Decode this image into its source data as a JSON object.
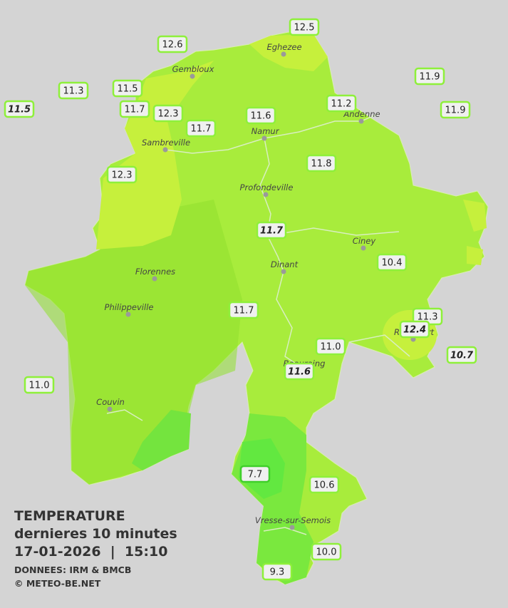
{
  "cities": [
    "Eghezee",
    "Gembloux",
    "Andenne",
    "Namur",
    "Sambreville",
    "Profondeville",
    "Ciney",
    "Dinant",
    "Florennes",
    "Philippeville",
    "Rochefort",
    "Beauraing",
    "Couvin",
    "Vresse-sur-Semois"
  ],
  "stations": [
    {
      "label": "12.5"
    },
    {
      "label": "12.6"
    },
    {
      "label": "11.9"
    },
    {
      "label": "11.3"
    },
    {
      "label": "11.5"
    },
    {
      "label": "11.5",
      "italic": true
    },
    {
      "label": "11.7"
    },
    {
      "label": "12.3"
    },
    {
      "label": "11.6"
    },
    {
      "label": "11.2"
    },
    {
      "label": "11.9"
    },
    {
      "label": "11.7"
    },
    {
      "label": "12.3"
    },
    {
      "label": "11.8"
    },
    {
      "label": "11.7",
      "italic": true
    },
    {
      "label": "10.4"
    },
    {
      "label": "11.7"
    },
    {
      "label": "11.3"
    },
    {
      "label": "12.4",
      "italic": true
    },
    {
      "label": "11.0"
    },
    {
      "label": "10.7",
      "italic": true
    },
    {
      "label": "11.6",
      "italic": true
    },
    {
      "label": "11.0"
    },
    {
      "label": "7.7"
    },
    {
      "label": "10.6"
    },
    {
      "label": "10.0"
    },
    {
      "label": "9.3"
    }
  ],
  "legend": {
    "title": "TEMPERATURE",
    "subtitle": "dernieres 10 minutes",
    "datetime": "17-01-2026  |  15:10",
    "source": "DONNEES: IRM & BMCB",
    "copyright": "© METEO-BE.NET"
  }
}
